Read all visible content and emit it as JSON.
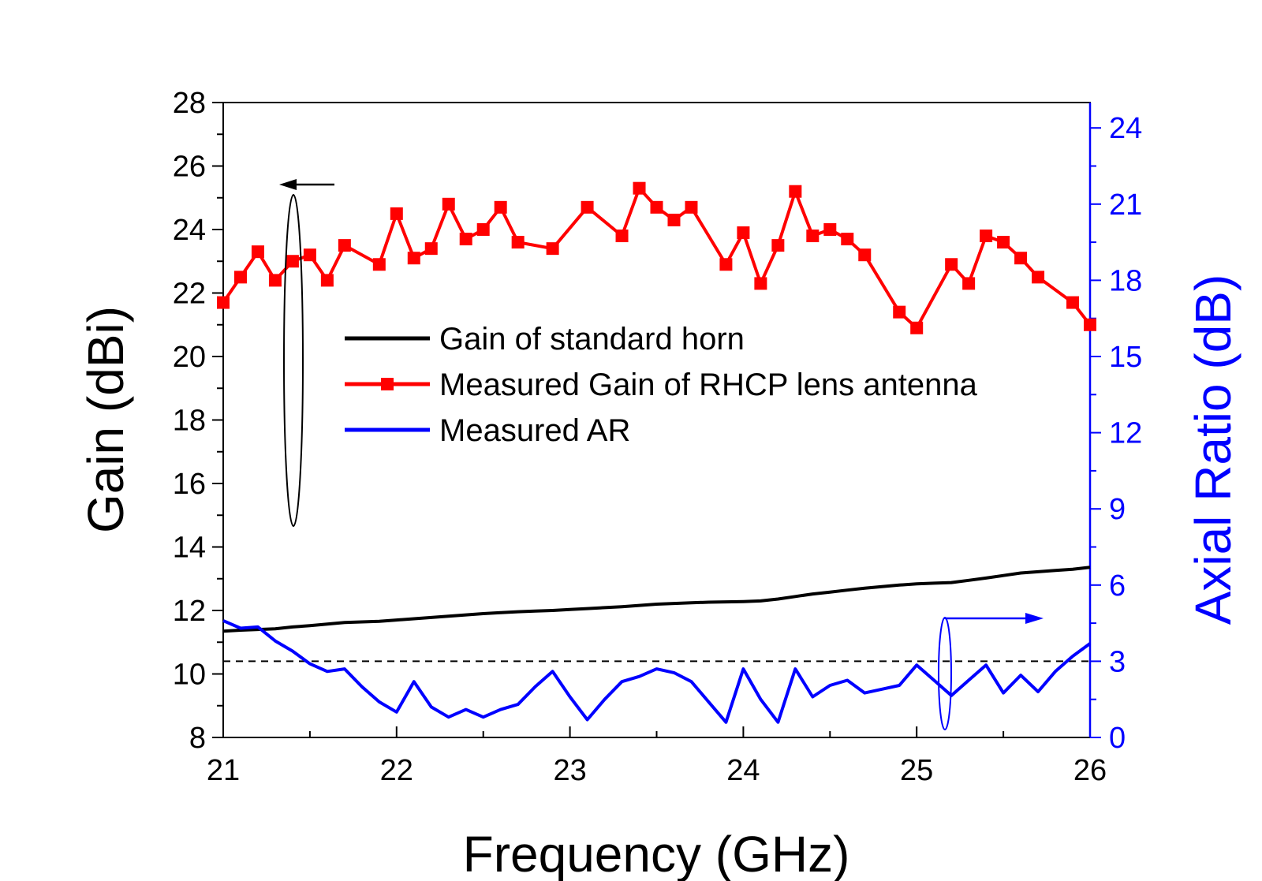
{
  "chart_data": {
    "type": "line",
    "x_axis": {
      "label": "Frequency (GHz)",
      "range": [
        21,
        26
      ],
      "ticks": [
        21,
        22,
        23,
        24,
        25,
        26
      ]
    },
    "y_axis_left": {
      "label": "Gain (dBi)",
      "range": [
        8,
        28
      ],
      "ticks": [
        8,
        10,
        12,
        14,
        16,
        18,
        20,
        22,
        24,
        26,
        28
      ],
      "color": "#000000"
    },
    "y_axis_right": {
      "label": "Axial Ratio (dB)",
      "range": [
        0,
        25
      ],
      "ticks": [
        0,
        3,
        6,
        9,
        12,
        15,
        18,
        21,
        24
      ],
      "color": "#0000ff"
    },
    "reference_line": {
      "axis": "right",
      "value": 3,
      "style": "dashed",
      "color": "#000000"
    },
    "legend_placement": "center",
    "series": [
      {
        "name": "Gain of standard horn",
        "axis": "left",
        "color": "#000000",
        "marker": "none",
        "x": [
          21.0,
          21.1,
          21.2,
          21.3,
          21.4,
          21.5,
          21.6,
          21.7,
          21.8,
          21.9,
          22.0,
          22.1,
          22.2,
          22.3,
          22.4,
          22.5,
          22.6,
          22.7,
          22.8,
          22.9,
          23.0,
          23.1,
          23.2,
          23.3,
          23.4,
          23.5,
          23.6,
          23.7,
          23.8,
          23.9,
          24.0,
          24.1,
          24.2,
          24.3,
          24.4,
          24.5,
          24.6,
          24.7,
          24.8,
          24.9,
          25.0,
          25.1,
          25.2,
          25.3,
          25.4,
          25.5,
          25.6,
          25.7,
          25.8,
          25.9,
          26.0
        ],
        "y": [
          11.35,
          11.38,
          11.4,
          11.42,
          11.48,
          11.52,
          11.57,
          11.62,
          11.64,
          11.66,
          11.7,
          11.74,
          11.78,
          11.82,
          11.86,
          11.9,
          11.93,
          11.96,
          11.98,
          12.0,
          12.03,
          12.06,
          12.09,
          12.12,
          12.16,
          12.2,
          12.22,
          12.24,
          12.26,
          12.27,
          12.28,
          12.3,
          12.36,
          12.44,
          12.52,
          12.58,
          12.64,
          12.7,
          12.75,
          12.8,
          12.84,
          12.86,
          12.88,
          12.95,
          13.02,
          13.1,
          13.18,
          13.22,
          13.26,
          13.3,
          13.36
        ]
      },
      {
        "name": "Measured Gain of RHCP lens antenna",
        "axis": "left",
        "color": "#ff0000",
        "marker": "square",
        "x": [
          21.0,
          21.1,
          21.2,
          21.3,
          21.4,
          21.5,
          21.6,
          21.7,
          21.9,
          22.0,
          22.1,
          22.2,
          22.3,
          22.4,
          22.5,
          22.6,
          22.7,
          22.9,
          23.1,
          23.3,
          23.4,
          23.5,
          23.6,
          23.7,
          23.9,
          24.0,
          24.1,
          24.2,
          24.3,
          24.4,
          24.5,
          24.6,
          24.7,
          24.9,
          25.0,
          25.2,
          25.3,
          25.4,
          25.5,
          25.6,
          25.7,
          25.9,
          26.0
        ],
        "y": [
          21.7,
          22.5,
          23.3,
          22.4,
          23.0,
          23.2,
          22.4,
          23.5,
          22.9,
          24.5,
          23.1,
          23.4,
          24.8,
          23.7,
          24.0,
          24.7,
          23.6,
          23.4,
          24.7,
          23.8,
          25.3,
          24.7,
          24.3,
          24.7,
          22.9,
          23.9,
          22.3,
          23.5,
          25.2,
          23.8,
          24.0,
          23.7,
          23.2,
          21.4,
          20.9,
          22.9,
          22.3,
          23.8,
          23.6,
          23.1,
          22.5,
          21.7,
          21.0
        ]
      },
      {
        "name": "Measured AR",
        "axis": "right",
        "color": "#0000ff",
        "marker": "none",
        "x": [
          21.0,
          21.1,
          21.2,
          21.3,
          21.4,
          21.5,
          21.6,
          21.7,
          21.8,
          21.9,
          22.0,
          22.1,
          22.2,
          22.3,
          22.4,
          22.5,
          22.6,
          22.7,
          22.8,
          22.9,
          23.0,
          23.1,
          23.2,
          23.3,
          23.4,
          23.5,
          23.6,
          23.7,
          23.8,
          23.9,
          24.0,
          24.1,
          24.2,
          24.3,
          24.4,
          24.5,
          24.6,
          24.7,
          24.8,
          24.9,
          25.0,
          25.1,
          25.2,
          25.3,
          25.4,
          25.5,
          25.6,
          25.7,
          25.8,
          25.9,
          26.0
        ],
        "y": [
          4.6,
          4.3,
          4.35,
          3.8,
          3.4,
          2.9,
          2.6,
          2.7,
          2.0,
          1.4,
          1.0,
          2.2,
          1.2,
          0.8,
          1.1,
          0.8,
          1.1,
          1.3,
          2.0,
          2.6,
          1.6,
          0.7,
          1.5,
          2.2,
          2.4,
          2.7,
          2.55,
          2.2,
          1.4,
          0.6,
          2.7,
          1.5,
          0.6,
          2.7,
          1.6,
          2.05,
          2.25,
          1.75,
          1.9,
          2.05,
          2.85,
          2.25,
          1.65,
          2.25,
          2.85,
          1.75,
          2.45,
          1.8,
          2.6,
          3.2,
          3.7
        ]
      }
    ]
  }
}
